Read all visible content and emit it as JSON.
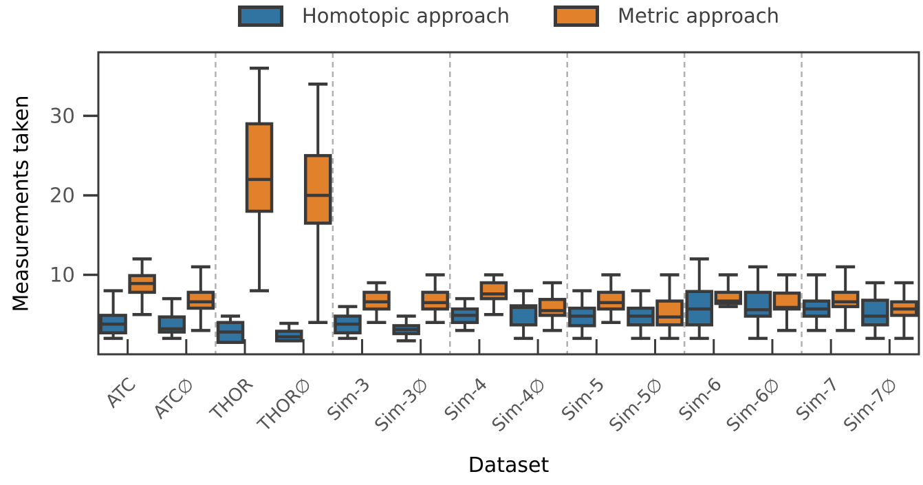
{
  "style": {
    "background": "#ffffff",
    "edge_color": "#3a3a3a",
    "separator_color": "#b0b0b0",
    "tick_label_color": "#555555",
    "axis_label_color": "#000000",
    "homotopic_color": "#3274a1",
    "metric_color": "#e1812c"
  },
  "chart_data": {
    "type": "box",
    "title": "",
    "xlabel": "Dataset",
    "ylabel": "Measurements taken",
    "ylim": [
      0,
      38
    ],
    "yticks": [
      10,
      20,
      30
    ],
    "grid": false,
    "legend_position": "top-center",
    "separator_every": 2,
    "categories": [
      "ATC",
      "ATC∅",
      "THOR",
      "THOR∅",
      "Sim-3",
      "Sim-3∅",
      "Sim-4",
      "Sim-4∅",
      "Sim-5",
      "Sim-5∅",
      "Sim-6",
      "Sim-6∅",
      "Sim-7",
      "Sim-7∅"
    ],
    "series": [
      {
        "name": "Homotopic approach",
        "color": "#3274a1",
        "boxes_lo_q1_med_q3_hi": [
          [
            2,
            2.7,
            3.8,
            4.9,
            8
          ],
          [
            2,
            2.8,
            3.2,
            4.7,
            7
          ],
          [
            1.5,
            1.5,
            2.8,
            4,
            4.8
          ],
          [
            1.7,
            1.7,
            2.2,
            2.9,
            3.9
          ],
          [
            2,
            2.7,
            3.8,
            4.8,
            6
          ],
          [
            1.7,
            2.6,
            3.1,
            3.6,
            4.8
          ],
          [
            3,
            4,
            4.9,
            5.7,
            7
          ],
          [
            2,
            3.7,
            5.9,
            6.1,
            8
          ],
          [
            2,
            3.6,
            4.8,
            5.8,
            8
          ],
          [
            2,
            3.7,
            4.8,
            5.8,
            8
          ],
          [
            2,
            3.7,
            5.7,
            7.9,
            12
          ],
          [
            2,
            4.8,
            5.6,
            7.8,
            11
          ],
          [
            3,
            4.8,
            5.7,
            6.7,
            10
          ],
          [
            2,
            3.7,
            4.8,
            6.8,
            9
          ]
        ]
      },
      {
        "name": "Metric approach",
        "color": "#e1812c",
        "boxes_lo_q1_med_q3_hi": [
          [
            5,
            7.8,
            8.9,
            9.9,
            12
          ],
          [
            3,
            5.8,
            6.6,
            7.8,
            11
          ],
          [
            8,
            18,
            22,
            29,
            36
          ],
          [
            4,
            16.5,
            20,
            25,
            34
          ],
          [
            4,
            5.7,
            6.6,
            7.8,
            9
          ],
          [
            4,
            5.7,
            6.5,
            7.8,
            10
          ],
          [
            5,
            7,
            7.6,
            9,
            10
          ],
          [
            3,
            4.9,
            5.5,
            6.9,
            9
          ],
          [
            4,
            5.7,
            6.5,
            7.8,
            10
          ],
          [
            2,
            3.7,
            4.7,
            6.7,
            10
          ],
          [
            6,
            6.4,
            6.7,
            7.8,
            10
          ],
          [
            3,
            5.7,
            5.9,
            7.7,
            10
          ],
          [
            3,
            6,
            6.6,
            7.8,
            11
          ],
          [
            2,
            4.9,
            5.7,
            6.6,
            9
          ]
        ]
      }
    ]
  }
}
